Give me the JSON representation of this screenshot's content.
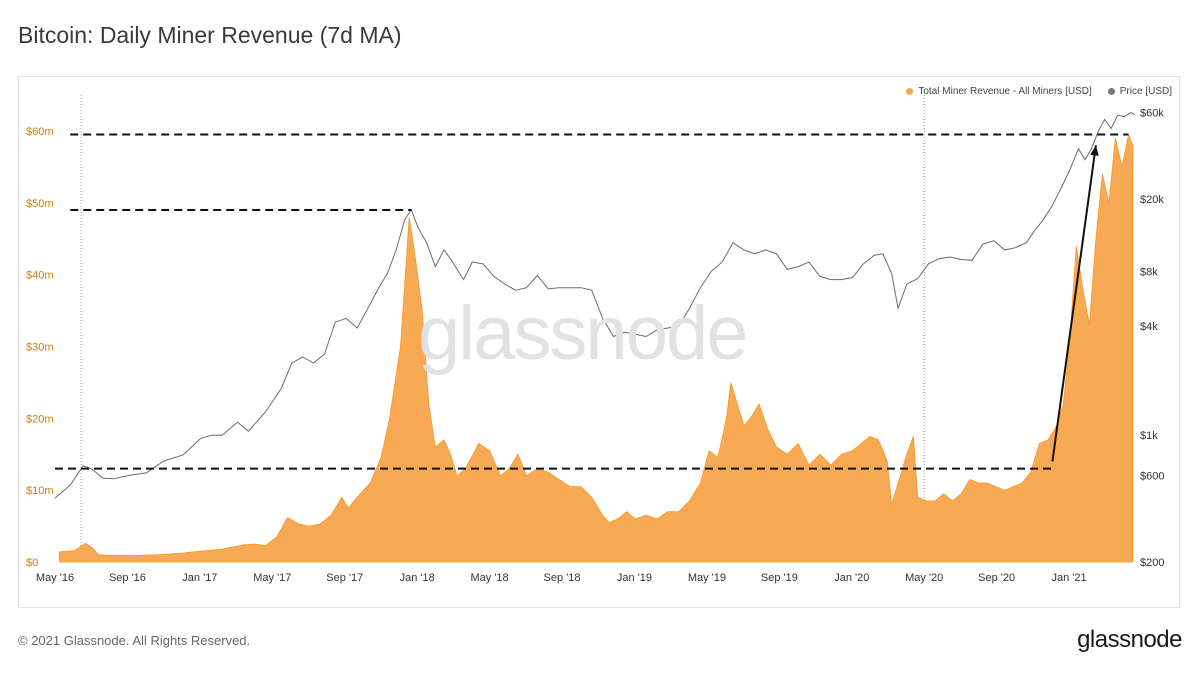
{
  "title": "Bitcoin: Daily Miner Revenue (7d MA)",
  "footer": "© 2021 Glassnode. All Rights Reserved.",
  "brand": "glassnode",
  "watermark": "glassnode",
  "colors": {
    "revenue": "#f7931a",
    "revenue_fill": "#f8a54b",
    "price": "#6b6b6b",
    "axis_left": "#d47b00"
  },
  "legend": [
    {
      "label": "Total Miner Revenue - All Miners [USD]",
      "color": "#f7a94e"
    },
    {
      "label": "Price [USD]",
      "color": "#777777"
    }
  ],
  "chart_data": {
    "type": "area",
    "title": "Bitcoin: Daily Miner Revenue (7d MA)",
    "x_ticks": [
      "May '16",
      "Sep '16",
      "Jan '17",
      "May '17",
      "Sep '17",
      "Jan '18",
      "May '18",
      "Sep '18",
      "Jan '19",
      "May '19",
      "Sep '19",
      "Jan '20",
      "May '20",
      "Sep '20",
      "Jan '21"
    ],
    "y_left_ticks": [
      "$0",
      "$10m",
      "$20m",
      "$30m",
      "$40m",
      "$50m",
      "$60m"
    ],
    "y_left_range": [
      0,
      65
    ],
    "y_right_ticks": [
      "$200",
      "$600",
      "$1k",
      "$4k",
      "$8k",
      "$20k",
      "$60k"
    ],
    "y_right_tick_values": [
      200,
      600,
      1000,
      4000,
      8000,
      20000,
      60000
    ],
    "y_right_scale": "log",
    "y_right_range": [
      200,
      75000
    ],
    "x_range": [
      2016.33,
      2021.3
    ],
    "grid": false,
    "legend_position": "top-right",
    "series": [
      {
        "name": "Total Miner Revenue - All Miners [USD]",
        "unit": "USD millions",
        "points": [
          [
            2016.35,
            1.4
          ],
          [
            2016.42,
            1.6
          ],
          [
            2016.47,
            2.6
          ],
          [
            2016.5,
            2.0
          ],
          [
            2016.53,
            1.0
          ],
          [
            2016.6,
            0.9
          ],
          [
            2016.7,
            0.9
          ],
          [
            2016.8,
            1.0
          ],
          [
            2016.9,
            1.2
          ],
          [
            2017.0,
            1.5
          ],
          [
            2017.1,
            1.8
          ],
          [
            2017.2,
            2.4
          ],
          [
            2017.25,
            2.5
          ],
          [
            2017.3,
            2.3
          ],
          [
            2017.35,
            3.5
          ],
          [
            2017.4,
            6.2
          ],
          [
            2017.45,
            5.3
          ],
          [
            2017.5,
            5.0
          ],
          [
            2017.55,
            5.3
          ],
          [
            2017.6,
            6.5
          ],
          [
            2017.65,
            9.0
          ],
          [
            2017.68,
            7.5
          ],
          [
            2017.72,
            9.0
          ],
          [
            2017.78,
            11.0
          ],
          [
            2017.83,
            14.5
          ],
          [
            2017.87,
            20.0
          ],
          [
            2017.92,
            30.0
          ],
          [
            2017.96,
            48.0
          ],
          [
            2017.99,
            42.0
          ],
          [
            2018.02,
            35.0
          ],
          [
            2018.05,
            22.0
          ],
          [
            2018.08,
            16.0
          ],
          [
            2018.12,
            17.0
          ],
          [
            2018.15,
            15.0
          ],
          [
            2018.18,
            12.0
          ],
          [
            2018.22,
            13.0
          ],
          [
            2018.28,
            16.5
          ],
          [
            2018.33,
            15.5
          ],
          [
            2018.38,
            12.0
          ],
          [
            2018.42,
            13.0
          ],
          [
            2018.46,
            15.0
          ],
          [
            2018.5,
            12.0
          ],
          [
            2018.55,
            13.0
          ],
          [
            2018.6,
            12.5
          ],
          [
            2018.65,
            11.5
          ],
          [
            2018.7,
            10.5
          ],
          [
            2018.75,
            10.5
          ],
          [
            2018.8,
            9.0
          ],
          [
            2018.85,
            6.5
          ],
          [
            2018.88,
            5.5
          ],
          [
            2018.92,
            6.0
          ],
          [
            2018.96,
            7.0
          ],
          [
            2019.0,
            6.0
          ],
          [
            2019.05,
            6.5
          ],
          [
            2019.1,
            6.0
          ],
          [
            2019.15,
            7.0
          ],
          [
            2019.2,
            7.0
          ],
          [
            2019.25,
            8.5
          ],
          [
            2019.3,
            11.0
          ],
          [
            2019.34,
            15.5
          ],
          [
            2019.38,
            14.5
          ],
          [
            2019.42,
            20.0
          ],
          [
            2019.44,
            25.0
          ],
          [
            2019.47,
            22.0
          ],
          [
            2019.5,
            19.0
          ],
          [
            2019.53,
            20.0
          ],
          [
            2019.57,
            22.0
          ],
          [
            2019.61,
            18.5
          ],
          [
            2019.65,
            16.0
          ],
          [
            2019.7,
            15.0
          ],
          [
            2019.75,
            16.5
          ],
          [
            2019.8,
            13.5
          ],
          [
            2019.85,
            15.0
          ],
          [
            2019.9,
            13.5
          ],
          [
            2019.95,
            15.0
          ],
          [
            2020.0,
            15.5
          ],
          [
            2020.04,
            16.5
          ],
          [
            2020.08,
            17.5
          ],
          [
            2020.12,
            17.0
          ],
          [
            2020.16,
            14.0
          ],
          [
            2020.18,
            8.0
          ],
          [
            2020.22,
            12.0
          ],
          [
            2020.25,
            15.0
          ],
          [
            2020.28,
            17.5
          ],
          [
            2020.3,
            9.0
          ],
          [
            2020.34,
            8.5
          ],
          [
            2020.38,
            8.5
          ],
          [
            2020.42,
            9.5
          ],
          [
            2020.46,
            8.5
          ],
          [
            2020.5,
            9.5
          ],
          [
            2020.54,
            11.5
          ],
          [
            2020.58,
            11.0
          ],
          [
            2020.62,
            11.0
          ],
          [
            2020.66,
            10.5
          ],
          [
            2020.7,
            10.0
          ],
          [
            2020.74,
            10.5
          ],
          [
            2020.78,
            11.0
          ],
          [
            2020.82,
            12.5
          ],
          [
            2020.86,
            16.5
          ],
          [
            2020.9,
            17.0
          ],
          [
            2020.94,
            19.0
          ],
          [
            2020.97,
            22.0
          ],
          [
            2021.0,
            31.0
          ],
          [
            2021.03,
            44.0
          ],
          [
            2021.06,
            38.0
          ],
          [
            2021.09,
            33.0
          ],
          [
            2021.12,
            45.0
          ],
          [
            2021.15,
            54.0
          ],
          [
            2021.18,
            50.0
          ],
          [
            2021.21,
            59.0
          ],
          [
            2021.24,
            55.0
          ],
          [
            2021.27,
            59.5
          ],
          [
            2021.29,
            58.0
          ]
        ]
      },
      {
        "name": "Price [USD]",
        "unit": "USD",
        "points": [
          [
            2016.33,
            450
          ],
          [
            2016.4,
            530
          ],
          [
            2016.46,
            680
          ],
          [
            2016.5,
            650
          ],
          [
            2016.55,
            580
          ],
          [
            2016.6,
            575
          ],
          [
            2016.67,
            600
          ],
          [
            2016.75,
            620
          ],
          [
            2016.83,
            720
          ],
          [
            2016.92,
            780
          ],
          [
            2017.0,
            960
          ],
          [
            2017.05,
            1000
          ],
          [
            2017.1,
            1000
          ],
          [
            2017.17,
            1180
          ],
          [
            2017.22,
            1050
          ],
          [
            2017.3,
            1350
          ],
          [
            2017.37,
            1800
          ],
          [
            2017.42,
            2500
          ],
          [
            2017.47,
            2700
          ],
          [
            2017.52,
            2500
          ],
          [
            2017.57,
            2800
          ],
          [
            2017.62,
            4200
          ],
          [
            2017.67,
            4400
          ],
          [
            2017.72,
            3900
          ],
          [
            2017.77,
            5000
          ],
          [
            2017.82,
            6500
          ],
          [
            2017.86,
            7800
          ],
          [
            2017.9,
            10500
          ],
          [
            2017.94,
            15500
          ],
          [
            2017.97,
            17500
          ],
          [
            2018.0,
            14000
          ],
          [
            2018.04,
            11500
          ],
          [
            2018.08,
            8500
          ],
          [
            2018.12,
            10500
          ],
          [
            2018.16,
            9000
          ],
          [
            2018.21,
            7200
          ],
          [
            2018.25,
            9000
          ],
          [
            2018.3,
            8800
          ],
          [
            2018.35,
            7500
          ],
          [
            2018.4,
            6800
          ],
          [
            2018.45,
            6300
          ],
          [
            2018.5,
            6500
          ],
          [
            2018.55,
            7600
          ],
          [
            2018.6,
            6400
          ],
          [
            2018.65,
            6500
          ],
          [
            2018.7,
            6500
          ],
          [
            2018.75,
            6500
          ],
          [
            2018.8,
            6300
          ],
          [
            2018.85,
            4400
          ],
          [
            2018.9,
            3500
          ],
          [
            2018.95,
            3700
          ],
          [
            2019.0,
            3600
          ],
          [
            2019.05,
            3500
          ],
          [
            2019.1,
            3800
          ],
          [
            2019.15,
            3900
          ],
          [
            2019.2,
            4000
          ],
          [
            2019.25,
            5000
          ],
          [
            2019.3,
            6500
          ],
          [
            2019.35,
            8000
          ],
          [
            2019.4,
            9000
          ],
          [
            2019.45,
            11500
          ],
          [
            2019.5,
            10500
          ],
          [
            2019.55,
            10000
          ],
          [
            2019.6,
            10500
          ],
          [
            2019.65,
            10000
          ],
          [
            2019.7,
            8200
          ],
          [
            2019.75,
            8500
          ],
          [
            2019.8,
            9000
          ],
          [
            2019.85,
            7500
          ],
          [
            2019.9,
            7200
          ],
          [
            2019.95,
            7200
          ],
          [
            2020.0,
            7400
          ],
          [
            2020.05,
            8800
          ],
          [
            2020.1,
            9800
          ],
          [
            2020.14,
            10000
          ],
          [
            2020.18,
            7800
          ],
          [
            2020.21,
            5000
          ],
          [
            2020.25,
            6800
          ],
          [
            2020.3,
            7300
          ],
          [
            2020.35,
            8800
          ],
          [
            2020.4,
            9400
          ],
          [
            2020.45,
            9600
          ],
          [
            2020.5,
            9300
          ],
          [
            2020.55,
            9200
          ],
          [
            2020.6,
            11300
          ],
          [
            2020.65,
            11800
          ],
          [
            2020.7,
            10500
          ],
          [
            2020.75,
            10800
          ],
          [
            2020.8,
            11500
          ],
          [
            2020.84,
            13500
          ],
          [
            2020.88,
            15500
          ],
          [
            2020.92,
            18500
          ],
          [
            2020.96,
            23000
          ],
          [
            2021.0,
            29000
          ],
          [
            2021.04,
            38000
          ],
          [
            2021.07,
            33000
          ],
          [
            2021.1,
            38000
          ],
          [
            2021.13,
            47000
          ],
          [
            2021.16,
            55000
          ],
          [
            2021.19,
            49000
          ],
          [
            2021.22,
            58000
          ],
          [
            2021.25,
            57000
          ],
          [
            2021.28,
            60000
          ],
          [
            2021.3,
            58500
          ]
        ]
      }
    ],
    "annotations": [
      {
        "type": "dashed-hline",
        "value_m": 13,
        "x_from": 2016.33,
        "x_to": 2020.92
      },
      {
        "type": "dashed-hline",
        "value_m": 49,
        "x_from": 2016.4,
        "x_to": 2017.97
      },
      {
        "type": "dashed-hline",
        "value_m": 59.5,
        "x_from": 2016.4,
        "x_to": 2021.27
      },
      {
        "type": "arrow",
        "from": [
          2020.92,
          14
        ],
        "to": [
          2021.12,
          58
        ]
      },
      {
        "type": "vline-dotted",
        "x": 2016.45
      },
      {
        "type": "vline-dotted",
        "x": 2020.33
      }
    ]
  }
}
